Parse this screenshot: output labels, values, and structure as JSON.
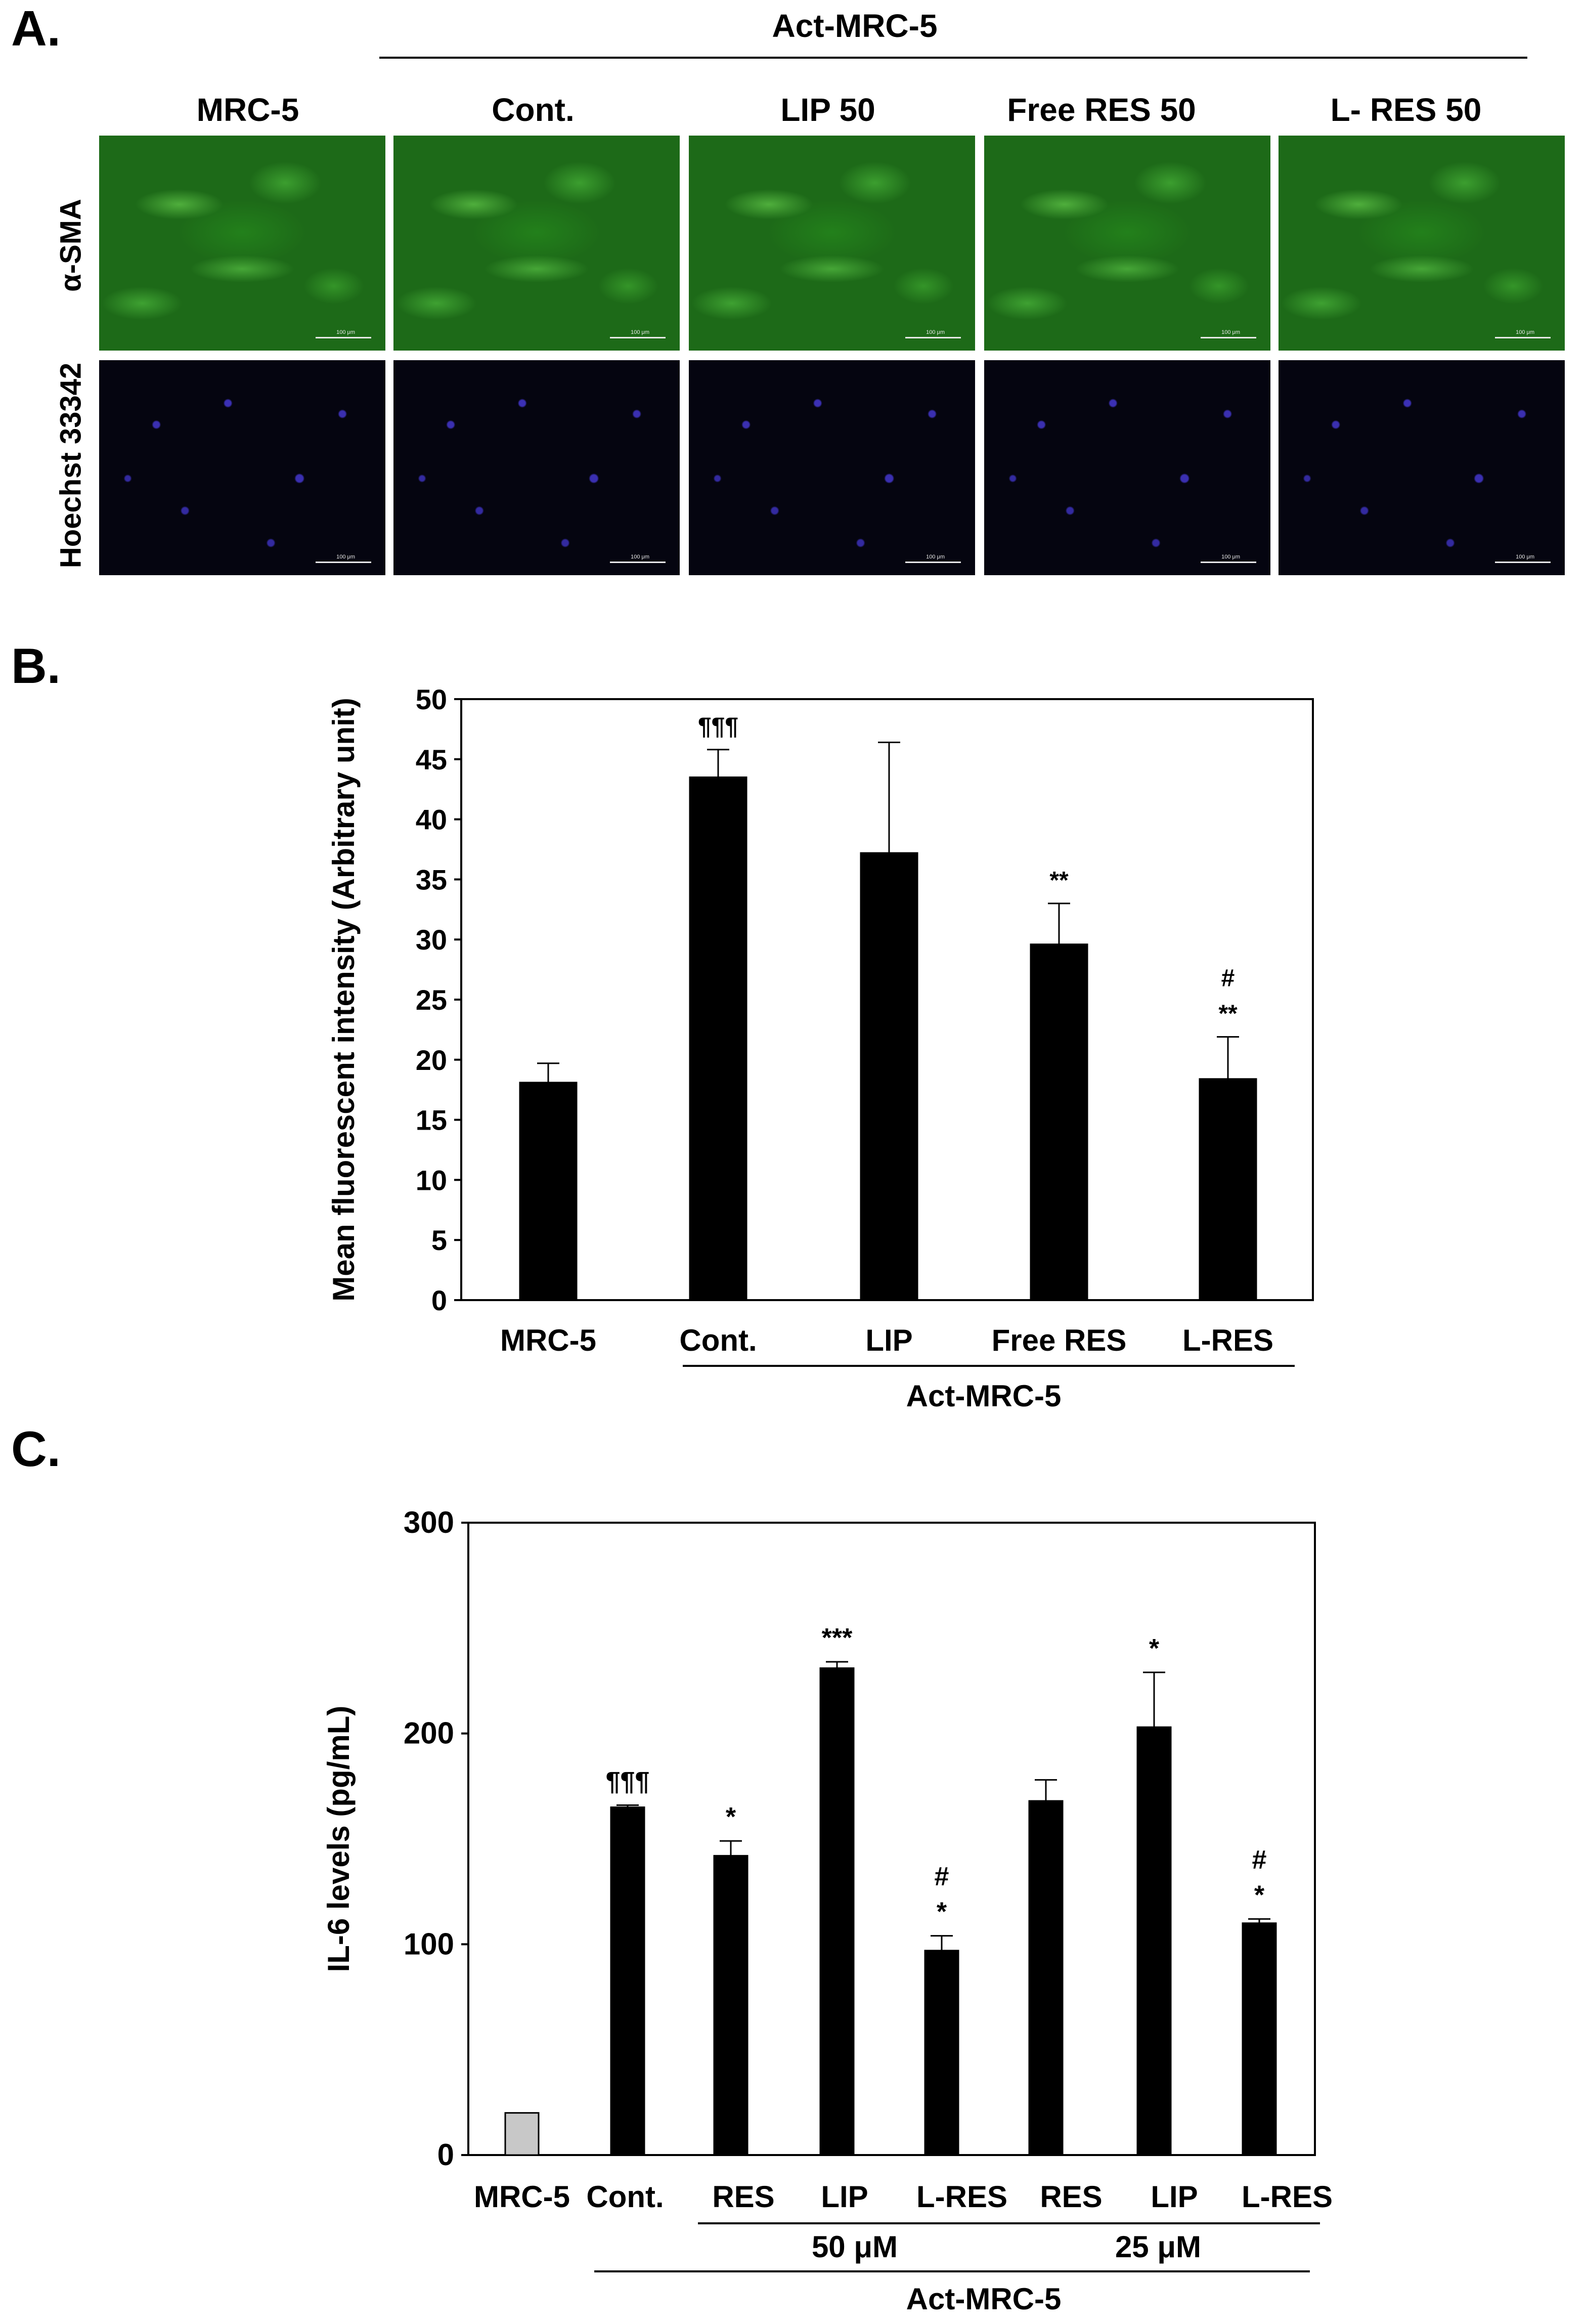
{
  "panel_a": {
    "letter": "A.",
    "group_label": "Act-MRC-5",
    "column_headers": [
      "MRC-5",
      "Cont.",
      "LIP 50",
      "Free RES 50",
      "L- RES 50"
    ],
    "row_labels": [
      "α-SMA",
      "Hoechst 33342"
    ],
    "scale_label": "100 μm",
    "stain_colors": {
      "alpha_sma": "#2fae22",
      "hoechst": "#3a2fb0"
    }
  },
  "chart_data": [
    {
      "type": "bar",
      "panel": "B.",
      "categories": [
        "MRC-5",
        "Cont.",
        "LIP",
        "Free RES",
        "L-RES"
      ],
      "values": [
        18.1,
        43.5,
        37.2,
        29.6,
        18.4
      ],
      "errors": [
        1.6,
        2.3,
        9.2,
        3.4,
        3.5
      ],
      "annotations": [
        [],
        [
          "¶¶¶"
        ],
        [],
        [
          "**"
        ],
        [
          "**",
          "#"
        ]
      ],
      "ylabel": "Mean fluorescent intensity (Arbitrary unit)",
      "yticks": [
        0,
        5,
        10,
        15,
        20,
        25,
        30,
        35,
        40,
        45,
        50
      ],
      "ylim": [
        0,
        50
      ],
      "group_label": "Act-MRC-5",
      "bar_colors": [
        "#000000",
        "#000000",
        "#000000",
        "#000000",
        "#000000"
      ]
    },
    {
      "type": "bar",
      "panel": "C.",
      "categories": [
        "MRC-5",
        "Cont.",
        "RES",
        "LIP",
        "L-RES",
        "RES",
        "LIP",
        "L-RES"
      ],
      "values": [
        20,
        165,
        142,
        231,
        97,
        168,
        203,
        110
      ],
      "errors": [
        0,
        1,
        7,
        3,
        7,
        10,
        26,
        2
      ],
      "annotations": [
        [],
        [
          "¶¶¶"
        ],
        [
          "*"
        ],
        [
          "***"
        ],
        [
          "*",
          "#"
        ],
        [],
        [
          "*"
        ],
        [
          "*",
          "#"
        ]
      ],
      "ylabel": "IL-6 levels (pg/mL)",
      "yticks": [
        0,
        100,
        200,
        300
      ],
      "ylim": [
        0,
        300
      ],
      "dose_labels": [
        "50 μM",
        "25 μM"
      ],
      "group_label": "Act-MRC-5",
      "bar_colors": [
        "#c8c8c8",
        "#000000",
        "#000000",
        "#000000",
        "#000000",
        "#000000",
        "#000000",
        "#000000"
      ]
    }
  ]
}
